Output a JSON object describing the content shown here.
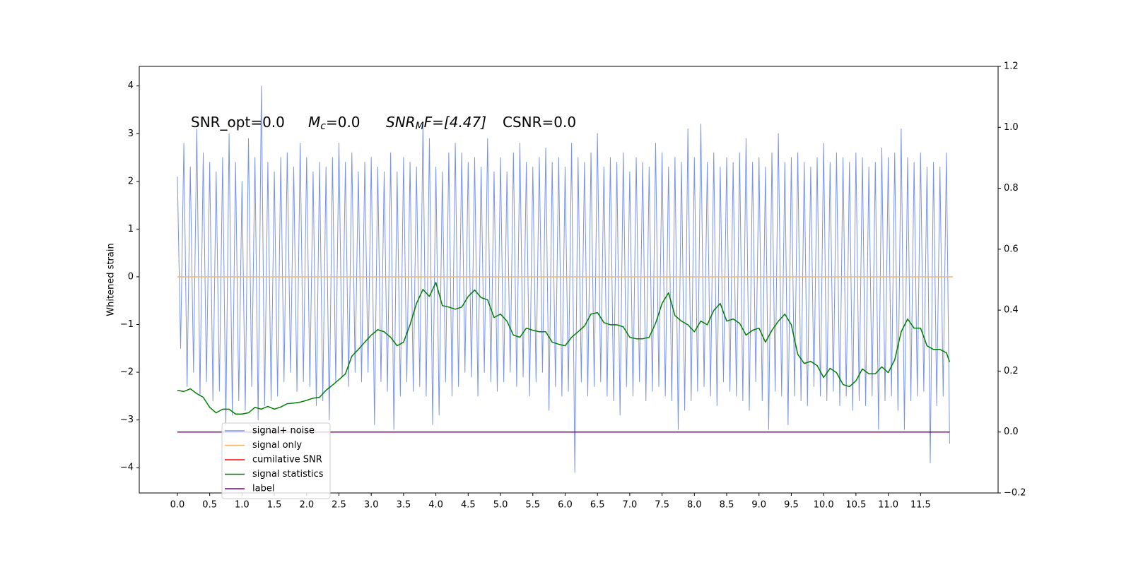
{
  "chart_data": {
    "type": "line",
    "ylabel": "Whitened strain",
    "annotations": [
      [
        "SNR_opt=0.0"
      ],
      [
        "M",
        "c",
        "=0.0"
      ],
      [
        "SNR",
        "M",
        "F=[4.47]"
      ],
      [
        "CSNR=0.0"
      ]
    ],
    "xlim": [
      -0.59,
      12.7
    ],
    "ylim": [
      -4.53,
      4.41
    ],
    "y2lim": [
      -0.2,
      1.2
    ],
    "xticks": [
      {
        "value": 0,
        "label": "0.0"
      },
      0.5,
      {
        "value": 1,
        "label": "1.0"
      },
      1.5,
      {
        "value": 2,
        "label": "2.0"
      },
      2.5,
      {
        "value": 3,
        "label": "3.0"
      },
      3.5,
      {
        "value": 4,
        "label": "4.0"
      },
      4.5,
      {
        "value": 5,
        "label": "5.0"
      },
      5.5,
      {
        "value": 6,
        "label": "6.0"
      },
      6.5,
      {
        "value": 7,
        "label": "7.0"
      },
      7.5,
      {
        "value": 8,
        "label": "8.0"
      },
      8.5,
      {
        "value": 9,
        "label": "9.0"
      },
      9.5,
      {
        "value": 10,
        "label": "10.0"
      },
      10.5,
      {
        "value": 11,
        "label": "11.0"
      },
      11.5
    ],
    "yticks": [
      {
        "value": -4,
        "label": "−4"
      },
      {
        "value": -3,
        "label": "−3"
      },
      {
        "value": -2,
        "label": "−2"
      },
      {
        "value": -1,
        "label": "−1"
      },
      0,
      1,
      2,
      3,
      4
    ],
    "y2ticks": [
      {
        "value": -0.2,
        "label": "−0.2"
      },
      {
        "value": 0,
        "label": "0.0"
      },
      0.2,
      0.4,
      0.6,
      0.8,
      {
        "value": 1,
        "label": "1.0"
      },
      1.2
    ],
    "series": [
      {
        "name": "signal+ noise",
        "color": "#7a93e8",
        "axis": "y",
        "x": [
          0,
          0.05,
          0.1,
          0.15,
          0.2,
          0.25,
          0.3,
          0.35,
          0.4,
          0.45,
          0.5,
          0.55,
          0.6,
          0.65,
          0.7,
          0.75,
          0.8,
          0.85,
          0.9,
          0.95,
          1,
          1.05,
          1.1,
          1.15,
          1.2,
          1.25,
          1.3,
          1.35,
          1.4,
          1.45,
          1.5,
          1.55,
          1.6,
          1.65,
          1.7,
          1.75,
          1.8,
          1.85,
          1.9,
          1.95,
          2,
          2.05,
          2.1,
          2.15,
          2.2,
          2.25,
          2.3,
          2.35,
          2.4,
          2.45,
          2.5,
          2.55,
          2.6,
          2.65,
          2.7,
          2.75,
          2.8,
          2.85,
          2.9,
          2.95,
          3,
          3.05,
          3.1,
          3.15,
          3.2,
          3.25,
          3.3,
          3.35,
          3.4,
          3.45,
          3.5,
          3.55,
          3.6,
          3.65,
          3.7,
          3.75,
          3.8,
          3.85,
          3.9,
          3.95,
          4,
          4.05,
          4.1,
          4.15,
          4.2,
          4.25,
          4.3,
          4.35,
          4.4,
          4.45,
          4.5,
          4.55,
          4.6,
          4.65,
          4.7,
          4.75,
          4.8,
          4.85,
          4.9,
          4.95,
          5,
          5.05,
          5.1,
          5.15,
          5.2,
          5.25,
          5.3,
          5.35,
          5.4,
          5.45,
          5.5,
          5.55,
          5.6,
          5.65,
          5.7,
          5.75,
          5.8,
          5.85,
          5.9,
          5.95,
          6,
          6.05,
          6.1,
          6.15,
          6.2,
          6.25,
          6.3,
          6.35,
          6.4,
          6.45,
          6.5,
          6.55,
          6.6,
          6.65,
          6.7,
          6.75,
          6.8,
          6.85,
          6.9,
          6.95,
          7,
          7.05,
          7.1,
          7.15,
          7.2,
          7.25,
          7.3,
          7.35,
          7.4,
          7.45,
          7.5,
          7.55,
          7.6,
          7.65,
          7.7,
          7.75,
          7.8,
          7.85,
          7.9,
          7.95,
          8,
          8.05,
          8.1,
          8.15,
          8.2,
          8.25,
          8.3,
          8.35,
          8.4,
          8.45,
          8.5,
          8.55,
          8.6,
          8.65,
          8.7,
          8.75,
          8.8,
          8.85,
          8.9,
          8.95,
          9,
          9.05,
          9.1,
          9.15,
          9.2,
          9.25,
          9.3,
          9.35,
          9.4,
          9.45,
          9.5,
          9.55,
          9.6,
          9.65,
          9.7,
          9.75,
          9.8,
          9.85,
          9.9,
          9.95,
          10,
          10.05,
          10.1,
          10.15,
          10.2,
          10.25,
          10.3,
          10.35,
          10.4,
          10.45,
          10.5,
          10.55,
          10.6,
          10.65,
          10.7,
          10.75,
          10.8,
          10.85,
          10.9,
          10.95,
          11,
          11.05,
          11.1,
          11.15,
          11.2,
          11.25,
          11.3,
          11.35,
          11.4,
          11.45,
          11.5,
          11.55,
          11.6,
          11.65,
          11.7,
          11.75,
          11.8,
          11.85,
          11.9,
          11.95
        ],
        "values": [
          2.1,
          -1.5,
          2.8,
          -2.3,
          2.3,
          -2.0,
          3.1,
          -2.5,
          2.6,
          -2.2,
          2.4,
          -2.6,
          2.2,
          -2.4,
          2.5,
          -3.1,
          3.0,
          -2.9,
          2.4,
          -2.6,
          2.0,
          -2.8,
          2.9,
          -2.3,
          2.5,
          -3.0,
          4.0,
          -2.7,
          2.4,
          -2.6,
          2.2,
          -2.5,
          2.5,
          -2.2,
          2.6,
          -2.0,
          2.3,
          -2.4,
          2.8,
          -2.2,
          2.5,
          -2.3,
          2.2,
          -2.7,
          2.4,
          -2.6,
          2.3,
          -3.0,
          2.5,
          -2.2,
          2.8,
          -2.1,
          2.4,
          -2.3,
          2.6,
          -2.0,
          2.2,
          -2.2,
          2.4,
          -2.0,
          2.5,
          -3.1,
          2.3,
          -2.2,
          2.2,
          -2.4,
          2.6,
          -3.2,
          2.2,
          -2.5,
          2.5,
          -2.2,
          2.4,
          -2.4,
          2.3,
          -2.3,
          3.2,
          -2.5,
          2.9,
          -3.1,
          2.3,
          -2.9,
          2.2,
          -2.2,
          2.6,
          -2.5,
          2.8,
          -2.3,
          2.6,
          -2.0,
          2.4,
          -2.1,
          2.5,
          -2.5,
          2.3,
          -2.0,
          2.9,
          -2.2,
          2.2,
          -2.4,
          2.5,
          -2.2,
          2.2,
          -2.0,
          2.6,
          -2.3,
          2.8,
          -2.1,
          2.4,
          -2.5,
          2.3,
          -2.2,
          2.5,
          -2.0,
          2.7,
          -2.8,
          2.4,
          -2.3,
          2.5,
          -2.5,
          2.3,
          -2.4,
          2.8,
          -4.1,
          2.5,
          -2.2,
          2.4,
          -2.5,
          2.6,
          -2.3,
          3.0,
          -2.2,
          2.3,
          -2.5,
          2.5,
          -2.6,
          2.4,
          -2.9,
          2.6,
          -2.3,
          2.2,
          -2.5,
          2.5,
          -2.2,
          2.4,
          -2.6,
          2.3,
          -2.4,
          2.8,
          -2.3,
          2.6,
          -2.5,
          2.3,
          -2.6,
          2.5,
          -3.2,
          2.4,
          -2.8,
          3.1,
          -2.6,
          2.5,
          -2.4,
          3.2,
          -2.3,
          2.4,
          -2.5,
          2.6,
          -2.7,
          2.3,
          -2.2,
          2.5,
          -2.4,
          2.4,
          -2.5,
          2.6,
          -2.6,
          2.9,
          -2.8,
          2.4,
          -2.2,
          2.5,
          -2.6,
          2.3,
          -3.2,
          2.6,
          -2.4,
          3.0,
          -2.5,
          2.4,
          -3.1,
          2.5,
          -2.5,
          2.6,
          -2.6,
          2.4,
          -2.7,
          2.3,
          -2.3,
          2.5,
          -2.5,
          2.8,
          -2.6,
          2.4,
          -2.4,
          2.6,
          -2.7,
          2.5,
          -2.5,
          2.4,
          -2.8,
          2.6,
          -2.6,
          2.5,
          -2.7,
          2.3,
          -2.5,
          2.4,
          -3.2,
          2.7,
          -2.6,
          2.5,
          -2.5,
          2.6,
          -2.8,
          3.1,
          -3.2,
          2.5,
          -2.6,
          2.4,
          -2.5,
          2.6,
          -2.4,
          2.3,
          -3.9,
          2.4,
          -2.7,
          2.3,
          -2.5,
          2.6,
          -3.5
        ]
      },
      {
        "name": "signal only",
        "color": "#f8b66a",
        "axis": "y",
        "x": [
          0,
          12
        ],
        "values": [
          0,
          0
        ]
      },
      {
        "name": "cumilative SNR",
        "color": "#ff0000",
        "axis": "y2",
        "x": [
          0,
          11.95
        ],
        "values": [
          0,
          0
        ]
      },
      {
        "name": "signal statistics",
        "color": "#008000",
        "axis": "y2",
        "x": [
          0,
          0.1,
          0.2,
          0.3,
          0.4,
          0.5,
          0.6,
          0.7,
          0.8,
          0.9,
          1,
          1.1,
          1.2,
          1.3,
          1.4,
          1.5,
          1.6,
          1.7,
          1.8,
          1.9,
          2,
          2.1,
          2.2,
          2.3,
          2.4,
          2.5,
          2.6,
          2.7,
          2.8,
          2.9,
          3,
          3.1,
          3.2,
          3.3,
          3.4,
          3.5,
          3.6,
          3.7,
          3.8,
          3.9,
          4,
          4.1,
          4.2,
          4.3,
          4.4,
          4.5,
          4.6,
          4.7,
          4.8,
          4.9,
          5,
          5.1,
          5.2,
          5.3,
          5.4,
          5.5,
          5.6,
          5.7,
          5.8,
          5.9,
          6,
          6.1,
          6.2,
          6.3,
          6.4,
          6.5,
          6.6,
          6.7,
          6.8,
          6.9,
          7,
          7.1,
          7.2,
          7.3,
          7.4,
          7.5,
          7.6,
          7.7,
          7.8,
          7.9,
          8,
          8.1,
          8.2,
          8.3,
          8.4,
          8.5,
          8.6,
          8.7,
          8.8,
          8.9,
          9,
          9.1,
          9.2,
          9.3,
          9.4,
          9.5,
          9.6,
          9.7,
          9.8,
          9.9,
          10,
          10.1,
          10.2,
          10.3,
          10.4,
          10.5,
          10.6,
          10.7,
          10.8,
          10.9,
          11,
          11.1,
          11.2,
          11.3,
          11.4,
          11.5,
          11.6,
          11.7,
          11.8,
          11.9,
          11.95
        ],
        "values": [
          0.137,
          0.133,
          0.142,
          0.126,
          0.114,
          0.081,
          0.063,
          0.075,
          0.075,
          0.059,
          0.059,
          0.063,
          0.081,
          0.075,
          0.084,
          0.075,
          0.082,
          0.093,
          0.095,
          0.098,
          0.104,
          0.111,
          0.114,
          0.137,
          0.154,
          0.172,
          0.191,
          0.249,
          0.271,
          0.295,
          0.318,
          0.336,
          0.329,
          0.311,
          0.283,
          0.295,
          0.352,
          0.422,
          0.468,
          0.445,
          0.491,
          0.415,
          0.41,
          0.403,
          0.41,
          0.445,
          0.466,
          0.441,
          0.434,
          0.376,
          0.387,
          0.364,
          0.318,
          0.311,
          0.341,
          0.334,
          0.329,
          0.329,
          0.295,
          0.288,
          0.283,
          0.311,
          0.329,
          0.348,
          0.387,
          0.392,
          0.359,
          0.352,
          0.352,
          0.345,
          0.311,
          0.306,
          0.306,
          0.311,
          0.357,
          0.422,
          0.457,
          0.382,
          0.364,
          0.352,
          0.329,
          0.364,
          0.352,
          0.399,
          0.422,
          0.364,
          0.371,
          0.357,
          0.318,
          0.334,
          0.341,
          0.295,
          0.334,
          0.364,
          0.387,
          0.352,
          0.255,
          0.225,
          0.232,
          0.218,
          0.179,
          0.209,
          0.195,
          0.156,
          0.149,
          0.168,
          0.207,
          0.191,
          0.191,
          0.214,
          0.195,
          0.237,
          0.329,
          0.371,
          0.341,
          0.341,
          0.283,
          0.271,
          0.271,
          0.26,
          0.23
        ]
      },
      {
        "name": "label",
        "color": "#800080",
        "axis": "y2",
        "x": [
          0,
          11.95
        ],
        "values": [
          0,
          0
        ]
      }
    ]
  }
}
